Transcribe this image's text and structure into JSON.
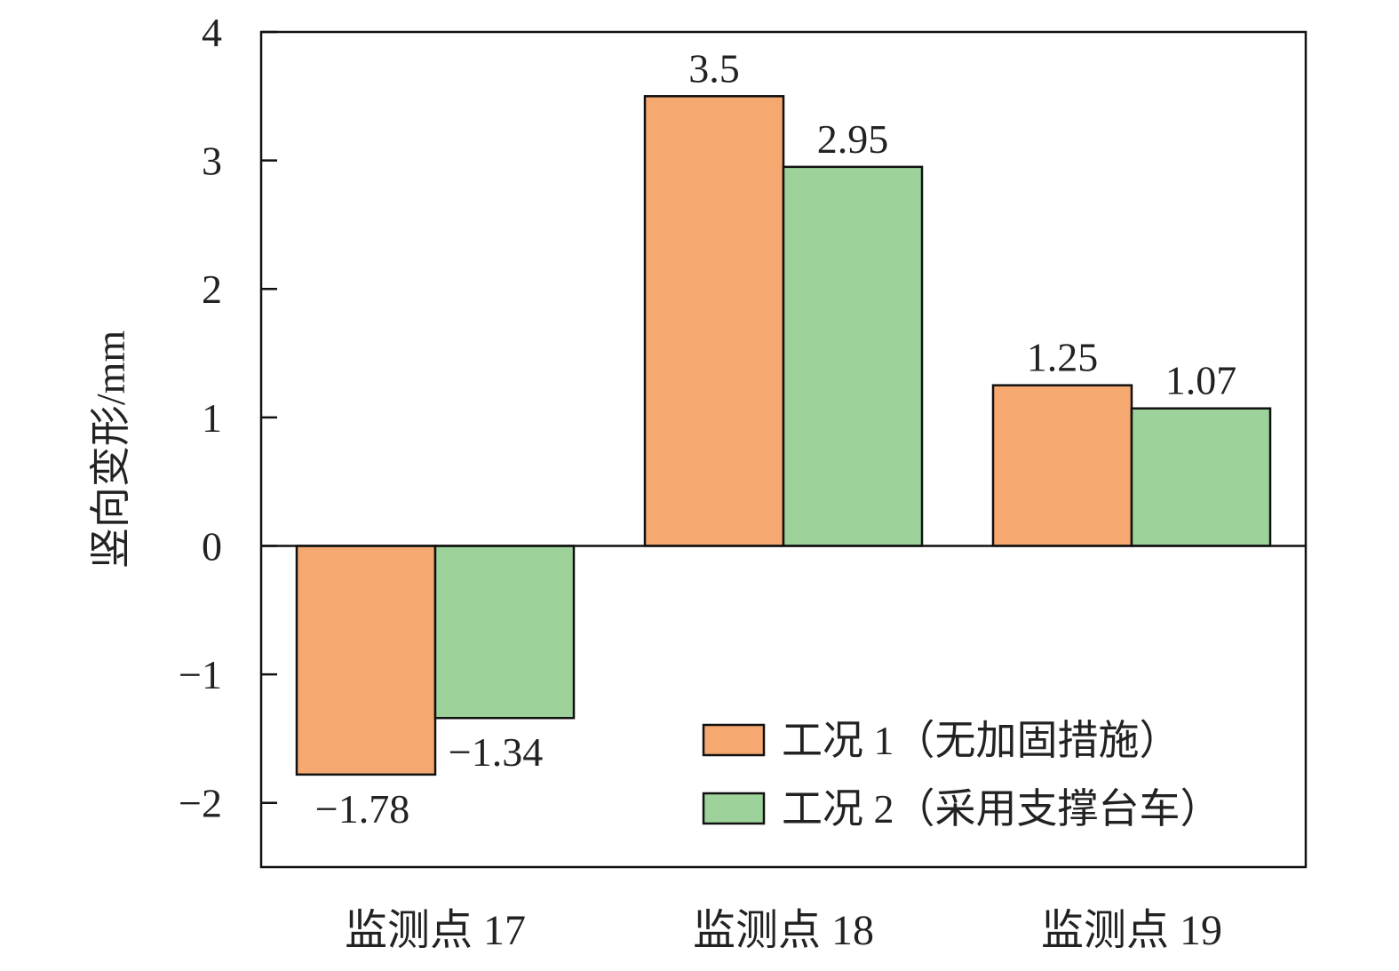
{
  "chart_data": {
    "type": "bar",
    "categories": [
      "监测点 17",
      "监测点 18",
      "监测点 19"
    ],
    "series": [
      {
        "name": "工况 1（无加固措施）",
        "values": [
          -1.78,
          3.5,
          1.25
        ],
        "labels": [
          "−1.78",
          "3.5",
          "1.25"
        ],
        "color": "#F6A871"
      },
      {
        "name": "工况 2（采用支撑台车）",
        "values": [
          -1.34,
          2.95,
          1.07
        ],
        "labels": [
          "−1.34",
          "2.95",
          "1.07"
        ],
        "color": "#9DD39A"
      }
    ],
    "ylabel": "竖向变形/mm",
    "xlabel": "",
    "ylim": [
      -2.5,
      4
    ],
    "yticks": [
      -2,
      -1,
      0,
      1,
      2,
      3,
      4
    ],
    "ytick_labels": [
      "−2",
      "−1",
      "0",
      "1",
      "2",
      "3",
      "4"
    ],
    "legend_position": "bottom-right",
    "grid": false
  }
}
